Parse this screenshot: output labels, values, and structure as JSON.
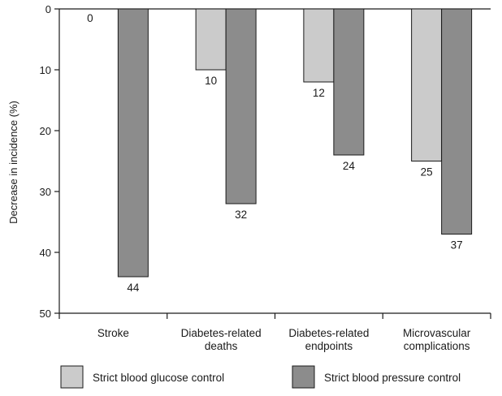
{
  "chart_data": {
    "type": "bar",
    "ylabel": "Decrease in incidence (%)",
    "ylim": [
      0,
      50
    ],
    "yticks": [
      0,
      10,
      20,
      30,
      40,
      50
    ],
    "y_inverted": true,
    "grid": false,
    "legend_position": "bottom",
    "categories": [
      [
        "Stroke"
      ],
      [
        "Diabetes-related",
        "deaths"
      ],
      [
        "Diabetes-related",
        "endpoints"
      ],
      [
        "Microvascular",
        "complications"
      ]
    ],
    "series": [
      {
        "name": "Strict blood glucose control",
        "color": "#cbcbcb",
        "values": [
          0,
          10,
          12,
          25
        ]
      },
      {
        "name": "Strict blood pressure control",
        "color": "#8c8c8c",
        "values": [
          44,
          32,
          24,
          37
        ]
      }
    ]
  }
}
